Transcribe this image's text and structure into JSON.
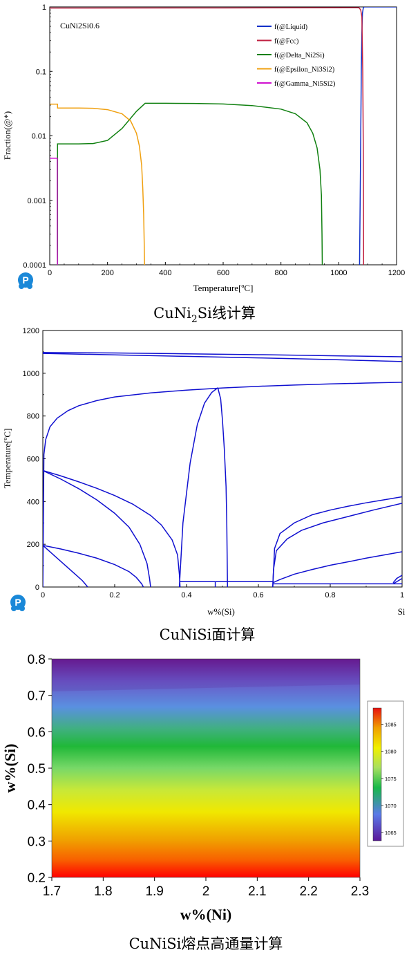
{
  "logo_letter": "P",
  "colors": {
    "liquid": "#1030c8",
    "fcc": "#c02040",
    "delta": "#108010",
    "epsilon": "#f0a010",
    "gamma": "#d010d0",
    "phase": "#1010d0",
    "logo": "#1a88d8"
  },
  "chart_data": [
    {
      "type": "line",
      "title": "CuNi2Si0.6",
      "xlabel": "Temperature[ºC]",
      "ylabel": "Fraction(@*)",
      "y_scale": "log",
      "xlim": [
        0,
        1200
      ],
      "ylim": [
        0.0001,
        1
      ],
      "xticks": [
        "0",
        "200",
        "400",
        "600",
        "800",
        "1000",
        "1200"
      ],
      "yticks": [
        "1",
        "0.1",
        "0.01",
        "0.001",
        "0.0001"
      ],
      "legend_position": "top-right",
      "caption_parts": [
        "CuNi",
        "2",
        "Si线计算"
      ],
      "series": [
        {
          "name": "f(@Liquid)",
          "color_key": "liquid",
          "x": [
            1072,
            1075,
            1078,
            1080,
            1082,
            1085,
            1088,
            1200
          ],
          "y": [
            0.0001,
            0.003,
            0.1,
            0.4,
            0.8,
            0.97,
            1,
            1
          ]
        },
        {
          "name": "f(@Fcc)",
          "color_key": "fcc",
          "x": [
            0,
            600,
            1050,
            1070,
            1076,
            1080,
            1083,
            1085,
            1086
          ],
          "y": [
            0.96,
            0.965,
            0.97,
            0.97,
            0.9,
            0.7,
            0.1,
            0.005,
            0.0001
          ]
        },
        {
          "name": "f(@Delta_Ni2Si)",
          "color_key": "delta",
          "x": [
            27,
            27,
            28,
            100,
            150,
            200,
            250,
            300,
            330,
            400,
            500,
            600,
            700,
            800,
            850,
            890,
            910,
            925,
            935,
            940,
            942,
            943
          ],
          "y": [
            0.0001,
            0.0075,
            0.0075,
            0.0075,
            0.0076,
            0.0085,
            0.013,
            0.024,
            0.032,
            0.032,
            0.0318,
            0.0312,
            0.0295,
            0.026,
            0.022,
            0.016,
            0.011,
            0.0065,
            0.003,
            0.0012,
            0.0003,
            0.0001
          ]
        },
        {
          "name": "f(@Epsilon_Ni3Si2)",
          "color_key": "epsilon",
          "x": [
            0,
            27,
            27,
            28,
            100,
            150,
            200,
            250,
            280,
            300,
            310,
            318,
            322,
            325,
            327,
            328
          ],
          "y": [
            0.031,
            0.031,
            0.027,
            0.027,
            0.027,
            0.0268,
            0.0255,
            0.022,
            0.017,
            0.011,
            0.007,
            0.0035,
            0.0015,
            0.0006,
            0.0002,
            0.0001
          ]
        },
        {
          "name": "f(@Gamma_Ni5Si2)",
          "color_key": "gamma",
          "x": [
            0,
            26,
            26,
            26.5
          ],
          "y": [
            0.0045,
            0.0045,
            0.0002,
            0.0001
          ]
        }
      ]
    },
    {
      "type": "line",
      "title": "",
      "xlabel": "w%(Si)",
      "ylabel": "Temperature[ºC]",
      "xlim": [
        0,
        1
      ],
      "ylim": [
        0,
        1200
      ],
      "xticks": [
        "0",
        "0.2",
        "0.4",
        "0.6",
        "0.8",
        "1"
      ],
      "yticks": [
        "0",
        "200",
        "400",
        "600",
        "800",
        "1000",
        "1200"
      ],
      "corner_label": "Si",
      "caption": "CuNiSi面计算",
      "series": [
        {
          "x": [
            0,
            0.2,
            0.4,
            0.6,
            0.8,
            1
          ],
          "y": [
            1097,
            1095,
            1091,
            1087,
            1082,
            1077
          ]
        },
        {
          "x": [
            0,
            0.2,
            0.4,
            0.6,
            0.8,
            1
          ],
          "y": [
            1093,
            1086,
            1079,
            1072,
            1064,
            1055
          ]
        },
        {
          "x": [
            0,
            0.003,
            0.008,
            0.02,
            0.04,
            0.07,
            0.1,
            0.15,
            0.2,
            0.3,
            0.4,
            0.5,
            0.6,
            0.7,
            0.8,
            0.9,
            1
          ],
          "y": [
            0,
            620,
            690,
            750,
            790,
            825,
            848,
            872,
            889,
            908,
            921,
            931,
            939,
            945,
            950,
            954,
            958
          ]
        },
        {
          "x": [
            0,
            0.05,
            0.1,
            0.15,
            0.2,
            0.25,
            0.3,
            0.33,
            0.36,
            0.375,
            0.38,
            0.382
          ],
          "y": [
            545,
            520,
            492,
            462,
            428,
            388,
            335,
            290,
            220,
            150,
            60,
            0
          ]
        },
        {
          "x": [
            0,
            0.05,
            0.1,
            0.15,
            0.2,
            0.24,
            0.27,
            0.29,
            0.297,
            0.3
          ],
          "y": [
            545,
            505,
            460,
            408,
            345,
            280,
            200,
            110,
            40,
            0
          ]
        },
        {
          "x": [
            0,
            0.05,
            0.1,
            0.15,
            0.2,
            0.24,
            0.26,
            0.275,
            0.28
          ],
          "y": [
            195,
            178,
            158,
            135,
            105,
            72,
            45,
            15,
            0
          ]
        },
        {
          "x": [
            0,
            0.03,
            0.06,
            0.09,
            0.11,
            0.12,
            0.125
          ],
          "y": [
            195,
            150,
            105,
            60,
            30,
            10,
            0
          ]
        },
        {
          "x": [
            0.38,
            0.382,
            0.39,
            0.41,
            0.43,
            0.45,
            0.47,
            0.487
          ],
          "y": [
            0,
            60,
            300,
            580,
            760,
            860,
            910,
            932
          ]
        },
        {
          "x": [
            0.487,
            0.495,
            0.5,
            0.505,
            0.51,
            0.512,
            0.514
          ],
          "y": [
            932,
            880,
            780,
            650,
            470,
            300,
            0
          ]
        },
        {
          "x": [
            0.38,
            0.64
          ],
          "y": [
            25,
            25
          ]
        },
        {
          "x": [
            0.48,
            0.48
          ],
          "y": [
            0,
            25
          ]
        },
        {
          "x": [
            0.64,
            1
          ],
          "y": [
            15,
            15
          ]
        },
        {
          "x": [
            0.64,
            0.645,
            0.66,
            0.7,
            0.75,
            0.8,
            0.85,
            0.9,
            0.95,
            1
          ],
          "y": [
            0,
            180,
            250,
            300,
            338,
            360,
            378,
            394,
            408,
            422
          ]
        },
        {
          "x": [
            0.64,
            0.642,
            0.65,
            0.68,
            0.72,
            0.78,
            0.85,
            0.92,
            1
          ],
          "y": [
            0,
            80,
            170,
            225,
            265,
            300,
            330,
            360,
            392
          ]
        },
        {
          "x": [
            0.64,
            0.66,
            0.7,
            0.75,
            0.8,
            0.85,
            0.9,
            0.95,
            1
          ],
          "y": [
            20,
            35,
            60,
            82,
            102,
            118,
            135,
            150,
            165
          ]
        },
        {
          "x": [
            0.975,
            0.985,
            1
          ],
          "y": [
            20,
            40,
            55
          ]
        },
        {
          "x": [
            0.975,
            0.99,
            1
          ],
          "y": [
            15,
            30,
            40
          ]
        }
      ]
    },
    {
      "type": "heatmap",
      "title": "",
      "xlabel": "w%(Ni)",
      "ylabel": "w%(Si)",
      "xlim": [
        1.7,
        2.3
      ],
      "ylim": [
        0.2,
        0.8
      ],
      "xticks": [
        "1.7",
        "1.8",
        "1.9",
        "2",
        "2.1",
        "2.2",
        "2.3"
      ],
      "yticks": [
        "0.2",
        "0.3",
        "0.4",
        "0.5",
        "0.6",
        "0.7",
        "0.8"
      ],
      "color_range": [
        1063.5,
        1088
      ],
      "colorbar_ticks": [
        "1085",
        "1080",
        "1075",
        "1070",
        "1065"
      ],
      "colorbar_position": "right",
      "caption": "CuNiSi熔点高通量计算",
      "value_model": "melting point decreases with w%(Si) (≈1088 at 0.2 to ≈1063.5 at 0.8) and rises slightly with w%(Ni)"
    }
  ]
}
